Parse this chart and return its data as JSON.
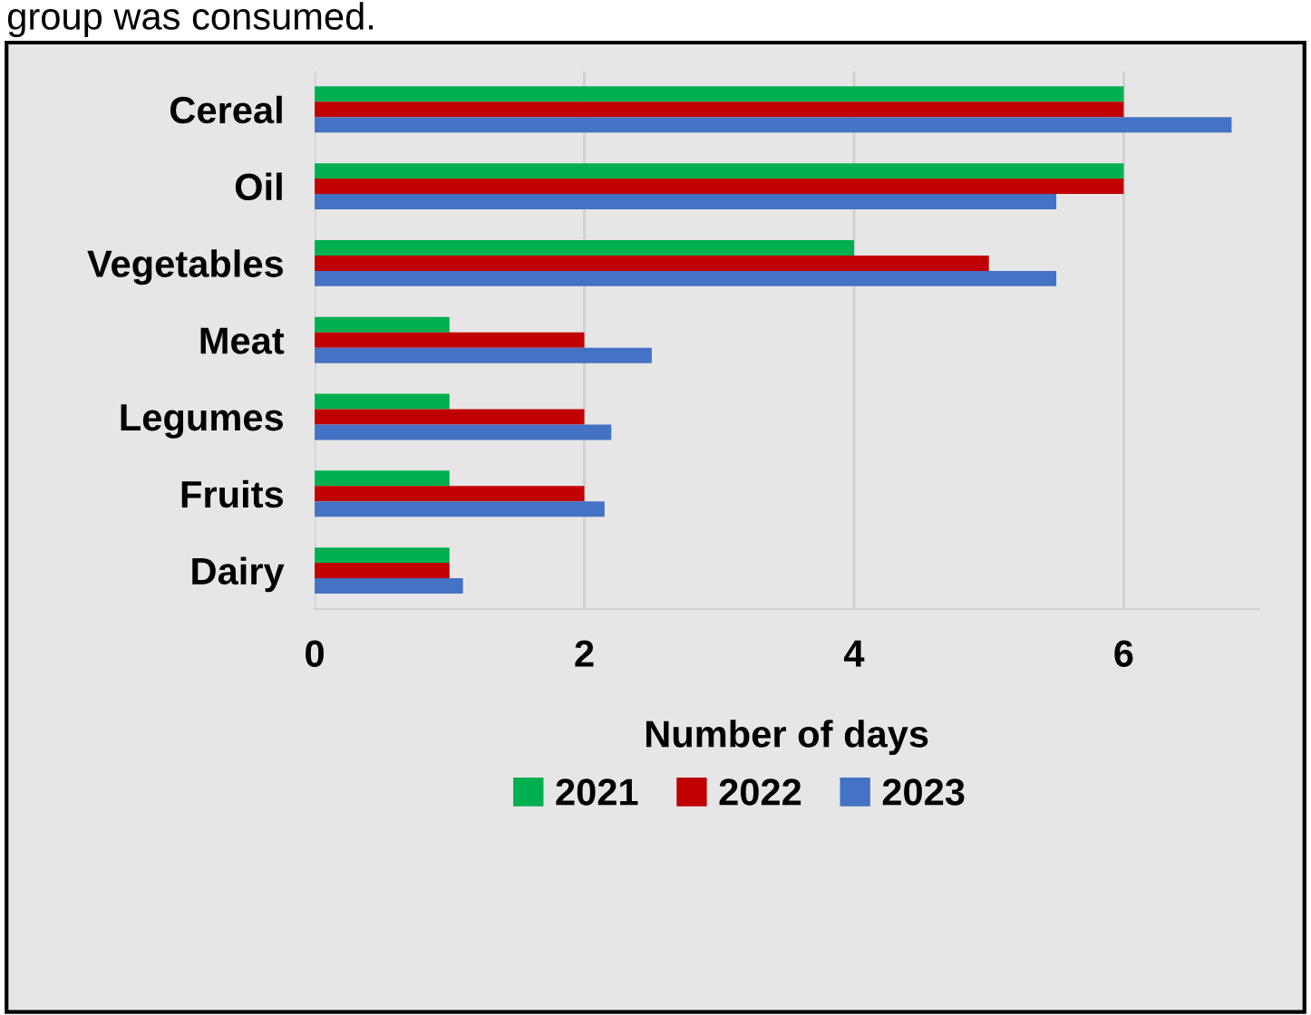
{
  "chart_data": {
    "type": "bar",
    "orientation": "horizontal",
    "categories": [
      "Cereal",
      "Oil",
      "Vegetables",
      "Meat",
      "Legumes",
      "Fruits",
      "Dairy"
    ],
    "series": [
      {
        "name": "2021",
        "color": "#00b050",
        "values": [
          6,
          6,
          4,
          1,
          1,
          1,
          1
        ]
      },
      {
        "name": "2022",
        "color": "#c00000",
        "values": [
          6,
          6,
          5,
          2,
          2,
          2,
          1
        ]
      },
      {
        "name": "2023",
        "color": "#4472c4",
        "values": [
          6.8,
          5.5,
          5.5,
          2.5,
          2.2,
          2.15,
          1.1
        ]
      }
    ],
    "xlim": [
      0,
      7
    ],
    "xticks": [
      0,
      2,
      4,
      6
    ],
    "xlabel": "Number of days",
    "grid": "x",
    "legend": "bottom",
    "annotations": [
      "group was consumed."
    ]
  }
}
